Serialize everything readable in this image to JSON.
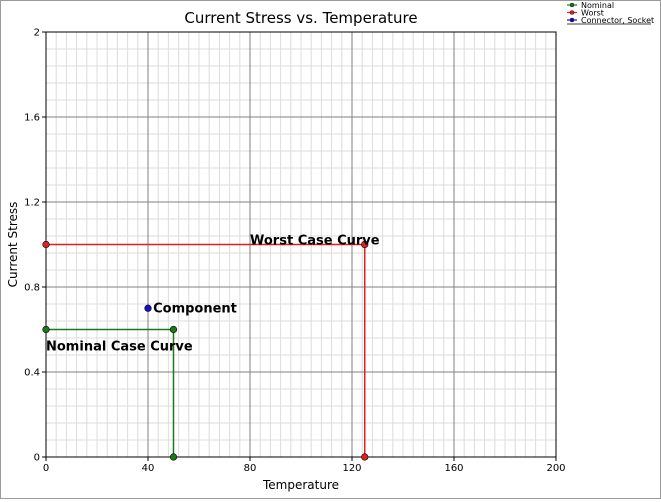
{
  "chart_data": {
    "type": "line",
    "title": "Current Stress vs. Temperature",
    "xlabel": "Temperature",
    "ylabel": "Current Stress",
    "xlim": [
      0,
      200
    ],
    "ylim": [
      0,
      2
    ],
    "x_ticks": [
      "0",
      "40",
      "80",
      "120",
      "160",
      "200"
    ],
    "y_ticks": [
      "0",
      "0.4",
      "0.8",
      "1.2",
      "1.6",
      "2"
    ],
    "grid": true,
    "legend_position": "top-right",
    "series": [
      {
        "name": "Nominal",
        "color": "#1a7a1a",
        "points": [
          [
            0,
            0.6
          ],
          [
            50,
            0.6
          ],
          [
            50,
            0
          ]
        ]
      },
      {
        "name": "Worst",
        "color": "#e02020",
        "points": [
          [
            0,
            1.0
          ],
          [
            125,
            1.0
          ],
          [
            125,
            0
          ]
        ]
      },
      {
        "name": "Connector, Socket",
        "color": "#1010d0",
        "points": [
          [
            40,
            0.7
          ]
        ]
      }
    ],
    "annotations": [
      {
        "text": "Worst Case Curve",
        "x": 80,
        "y": 1.02
      },
      {
        "text": "Nominal Case Curve",
        "x": 0,
        "y": 0.52
      },
      {
        "text": "Component",
        "x": 42,
        "y": 0.7
      }
    ]
  }
}
